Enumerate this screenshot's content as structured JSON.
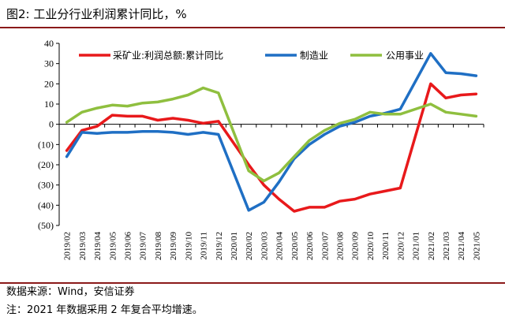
{
  "figure": {
    "title": "图2:  工业分行业利润累计同比，%",
    "source": "数据来源：Wind，安信证券",
    "note": "注：2021 年数据采用 2 年复合平均增速。"
  },
  "colors": {
    "series_1": "#e8191b",
    "series_2": "#1f6fc4",
    "series_3": "#8fbf3f",
    "rule": "#8b1a1a"
  },
  "chart_data": {
    "type": "line",
    "title": "图2:  工业分行业利润累计同比，%",
    "xlabel": "",
    "ylabel": "",
    "ylim": [
      -50,
      40
    ],
    "yticks": [
      40,
      30,
      20,
      10,
      0,
      -10,
      -20,
      -30,
      -40,
      -50
    ],
    "ytick_labels": [
      "40",
      "30",
      "20",
      "10",
      "0",
      "(10)",
      "(20)",
      "(30)",
      "(40)",
      "(50)"
    ],
    "grid": false,
    "legend_position": "top",
    "categories": [
      "2019/02",
      "2019/03",
      "2019/04",
      "2019/05",
      "2019/06",
      "2019/07",
      "2019/08",
      "2019/09",
      "2019/10",
      "2019/11",
      "2019/12",
      "2020/01",
      "2020/02",
      "2020/03",
      "2020/04",
      "2020/05",
      "2020/06",
      "2020/07",
      "2020/08",
      "2020/09",
      "2020/10",
      "2020/11",
      "2020/12",
      "2021/01",
      "2021/02",
      "2021/03",
      "2021/04",
      "2021/05"
    ],
    "x": [
      "2019/02",
      "2019/03",
      "2019/04",
      "2019/05",
      "2019/06",
      "2019/07",
      "2019/08",
      "2019/09",
      "2019/10",
      "2019/11",
      "2019/12",
      "2020/01",
      "2020/02",
      "2020/03",
      "2020/04",
      "2020/05",
      "2020/06",
      "2020/07",
      "2020/08",
      "2020/09",
      "2020/10",
      "2020/11",
      "2020/12",
      "2021/01",
      "2021/02",
      "2021/03",
      "2021/04",
      "2021/05"
    ],
    "series": [
      {
        "name": "采矿业:利润总额:累计同比",
        "values": [
          -13,
          -3,
          -1,
          4.5,
          4,
          4,
          2,
          3,
          2,
          0.5,
          1.5,
          null,
          -20,
          -30,
          -37,
          -43,
          -41,
          -41,
          -38,
          -37,
          -34.5,
          -33,
          -31.5,
          null,
          20,
          13,
          14.5,
          15
        ]
      },
      {
        "name": "制造业",
        "values": [
          -16,
          -4,
          -4.5,
          -4,
          -4,
          -3.5,
          -3.5,
          -4,
          -5,
          -4,
          -5,
          null,
          -42.5,
          -38.5,
          -28.5,
          -17,
          -10,
          -5,
          -1,
          1,
          4,
          5.5,
          7.5,
          null,
          35,
          25.5,
          25,
          24
        ]
      },
      {
        "name": "公用事业",
        "values": [
          1,
          6,
          8,
          9.5,
          9,
          10.5,
          11,
          12.5,
          14.5,
          18,
          15.5,
          null,
          -23,
          -28,
          -24,
          -16,
          -8,
          -3,
          0.5,
          2.5,
          6,
          5,
          5,
          null,
          10,
          6,
          5,
          4
        ]
      }
    ]
  }
}
